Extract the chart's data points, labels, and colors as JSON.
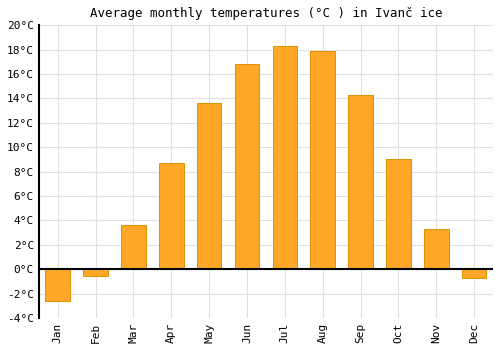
{
  "months": [
    "Jan",
    "Feb",
    "Mar",
    "Apr",
    "May",
    "Jun",
    "Jul",
    "Aug",
    "Sep",
    "Oct",
    "Nov",
    "Dec"
  ],
  "temperatures": [
    -2.6,
    -0.6,
    3.6,
    8.7,
    13.6,
    16.8,
    18.3,
    17.9,
    14.3,
    9.0,
    3.3,
    -0.7
  ],
  "bar_color": "#FFA726",
  "bar_edge_color": "#E09000",
  "title": "Average monthly temperatures (°C ) in Ivanč ice",
  "ylim": [
    -4,
    20
  ],
  "yticks": [
    -4,
    -2,
    0,
    2,
    4,
    6,
    8,
    10,
    12,
    14,
    16,
    18,
    20
  ],
  "background_color": "#ffffff",
  "grid_color": "#e0e0e0",
  "title_fontsize": 9,
  "tick_fontsize": 8,
  "font_family": "monospace"
}
